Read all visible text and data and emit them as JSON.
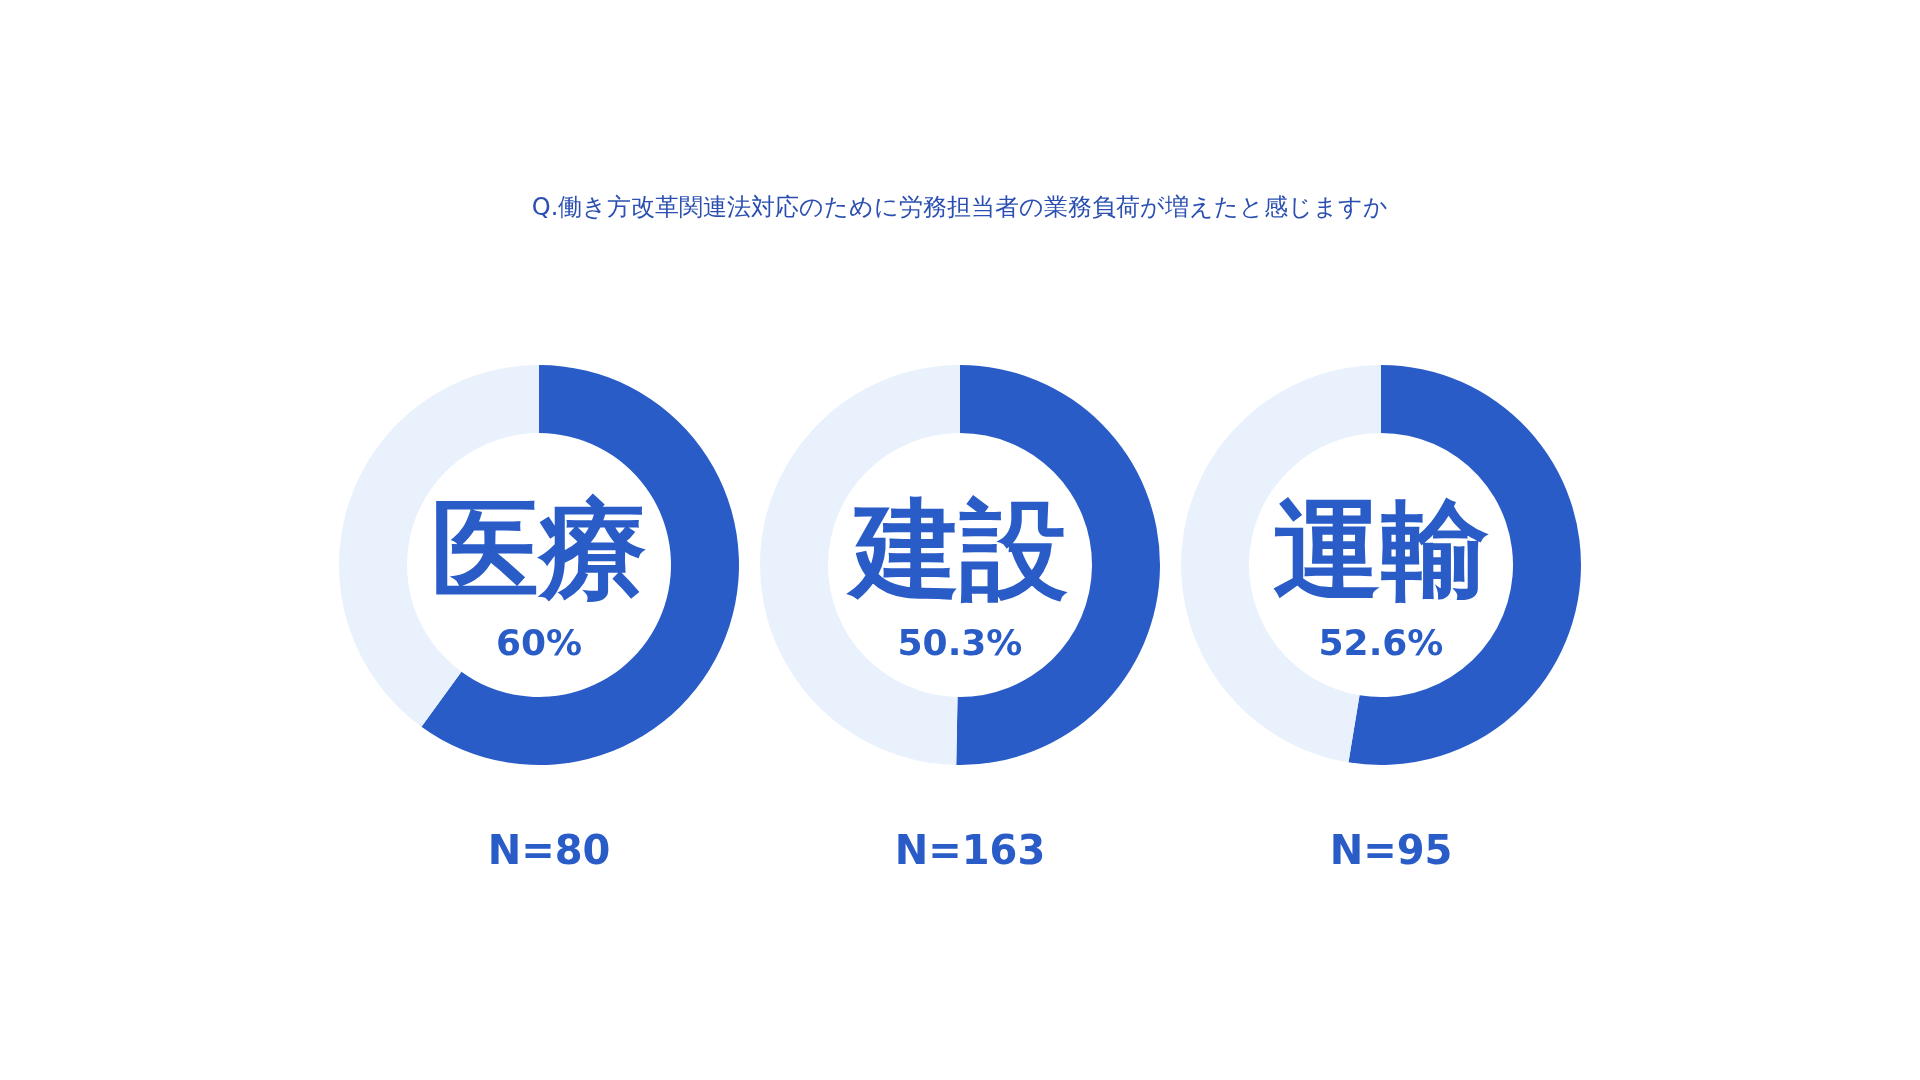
{
  "chart_data": [
    {
      "type": "other",
      "title": "Q.働き方改革関連法対応のために労務担当者の業務負荷が増えたと感じますか"
    },
    {
      "type": "donut",
      "title": "医療",
      "categories": [
        null,
        null
      ],
      "values": [
        60,
        40
      ],
      "colors": [
        "#2a5cc8",
        "#e8f1fc"
      ],
      "value_labels": [
        "60%",
        null
      ],
      "annotations": [
        "N=80"
      ]
    },
    {
      "type": "donut",
      "title": "建設",
      "categories": [
        null,
        null
      ],
      "values": [
        50.3,
        49.7
      ],
      "colors": [
        "#2a5cc8",
        "#e8f1fc"
      ],
      "value_labels": [
        "50.3%",
        null
      ],
      "annotations": [
        "N=163"
      ]
    },
    {
      "type": "donut",
      "title": "運輸",
      "categories": [
        null,
        null
      ],
      "values": [
        52.6,
        47.4
      ],
      "colors": [
        "#2a5cc8",
        "#e8f1fc"
      ],
      "value_labels": [
        "52.6%",
        null
      ],
      "annotations": [
        "N=95"
      ]
    }
  ]
}
